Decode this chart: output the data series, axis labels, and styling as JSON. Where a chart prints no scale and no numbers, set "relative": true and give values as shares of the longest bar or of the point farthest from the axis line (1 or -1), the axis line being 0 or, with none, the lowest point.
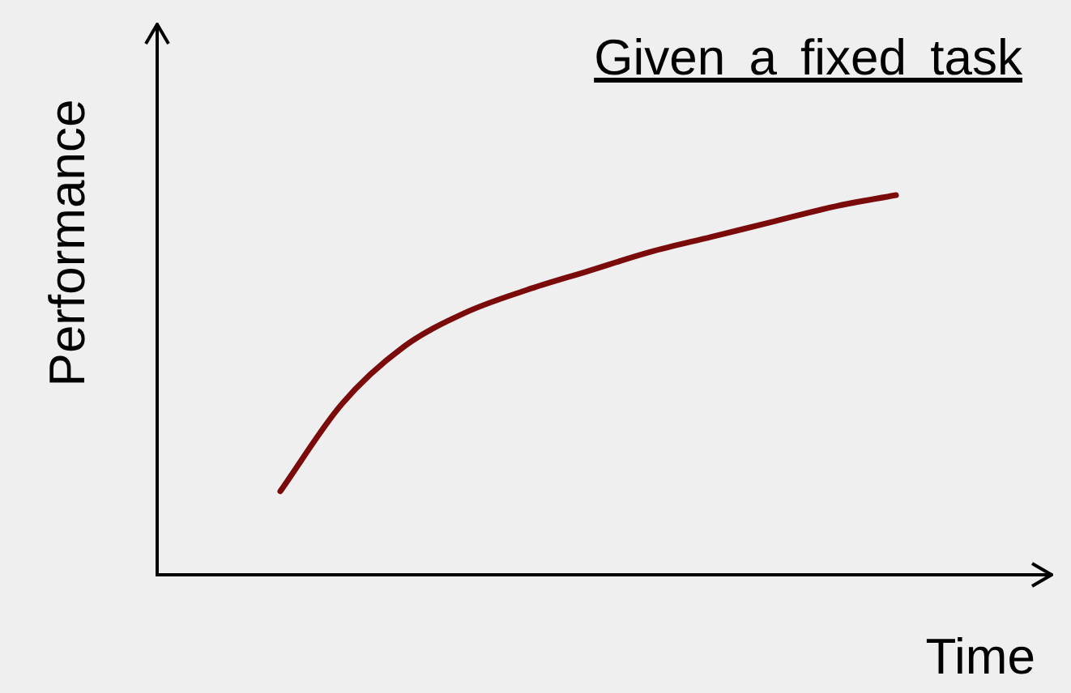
{
  "chart_data": {
    "type": "line",
    "title": "Given a fixed task",
    "xlabel": "Time",
    "ylabel": "Performance",
    "relative": true,
    "categories": [
      null,
      null,
      null,
      null,
      null,
      null,
      null,
      null,
      null,
      null,
      null,
      null,
      null,
      null,
      null
    ],
    "series": [
      {
        "color": "#7b0a0a",
        "values": [
          null,
          null,
          0.22,
          0.45,
          0.6,
          0.69,
          0.75,
          0.8,
          0.85,
          0.89,
          0.93,
          0.97,
          1,
          null,
          null
        ]
      }
    ],
    "legend": false,
    "marker": "none",
    "line_style": "solid"
  }
}
